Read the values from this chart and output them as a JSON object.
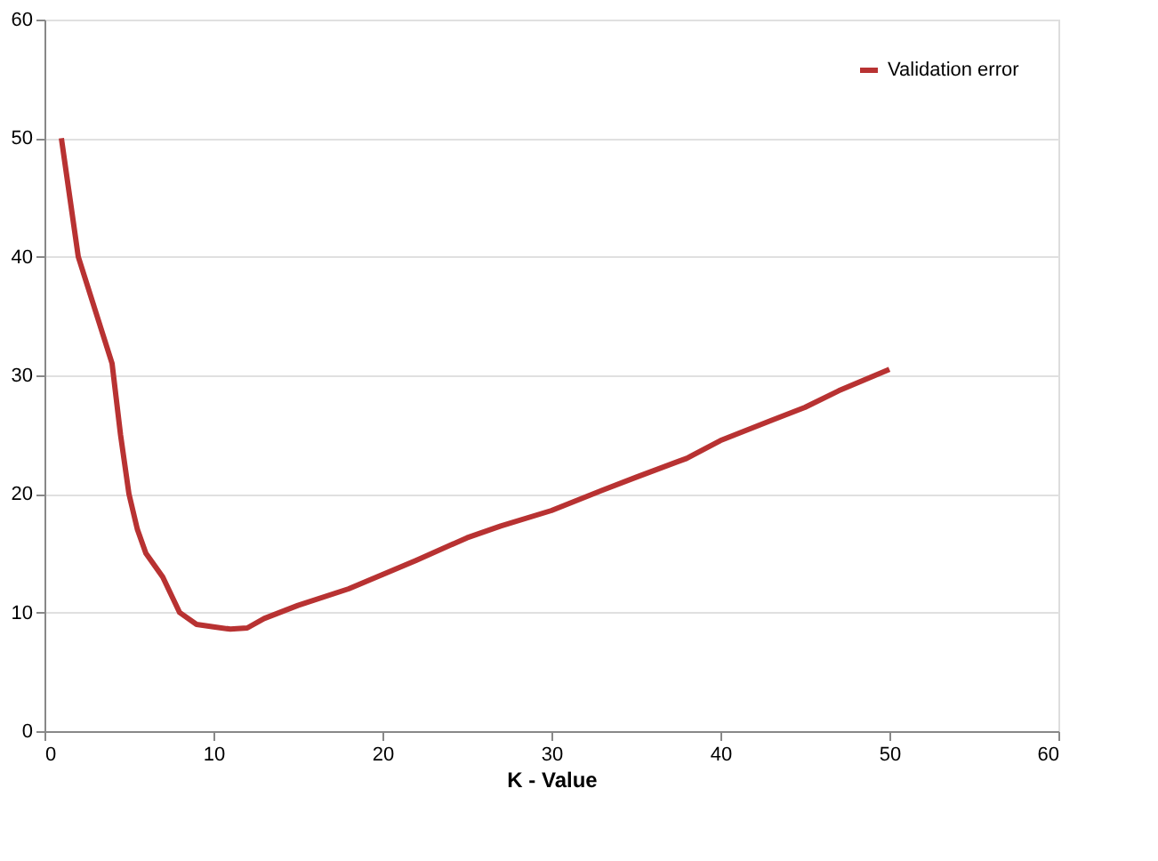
{
  "chart_data": {
    "type": "line",
    "xlabel": "K - Value",
    "x": [
      1,
      1.5,
      2,
      3,
      4,
      4.5,
      5,
      5.5,
      6,
      7,
      8,
      9,
      10,
      11,
      12,
      13,
      15,
      18,
      20,
      22,
      25,
      27,
      30,
      33,
      35,
      38,
      40,
      43,
      45,
      47,
      50
    ],
    "series": [
      {
        "name": "Validation error",
        "color": "#b83232",
        "values": [
          50,
          45,
          40,
          35.5,
          31,
          25,
          20,
          17,
          15,
          13,
          10,
          9,
          8.8,
          8.6,
          8.7,
          9.5,
          10.6,
          12,
          13.2,
          14.4,
          16.3,
          17.3,
          18.6,
          20.3,
          21.4,
          23,
          24.5,
          26.2,
          27.3,
          28.7,
          30.5
        ]
      }
    ],
    "xlim": [
      0,
      60
    ],
    "xticks": [
      0,
      10,
      20,
      30,
      40,
      50,
      60
    ],
    "ylim": [
      0,
      60
    ],
    "yticks": [
      0,
      10,
      20,
      30,
      40,
      50,
      60
    ],
    "grid": "y",
    "legend": "top right",
    "marker": "none",
    "line_style": "solid"
  }
}
